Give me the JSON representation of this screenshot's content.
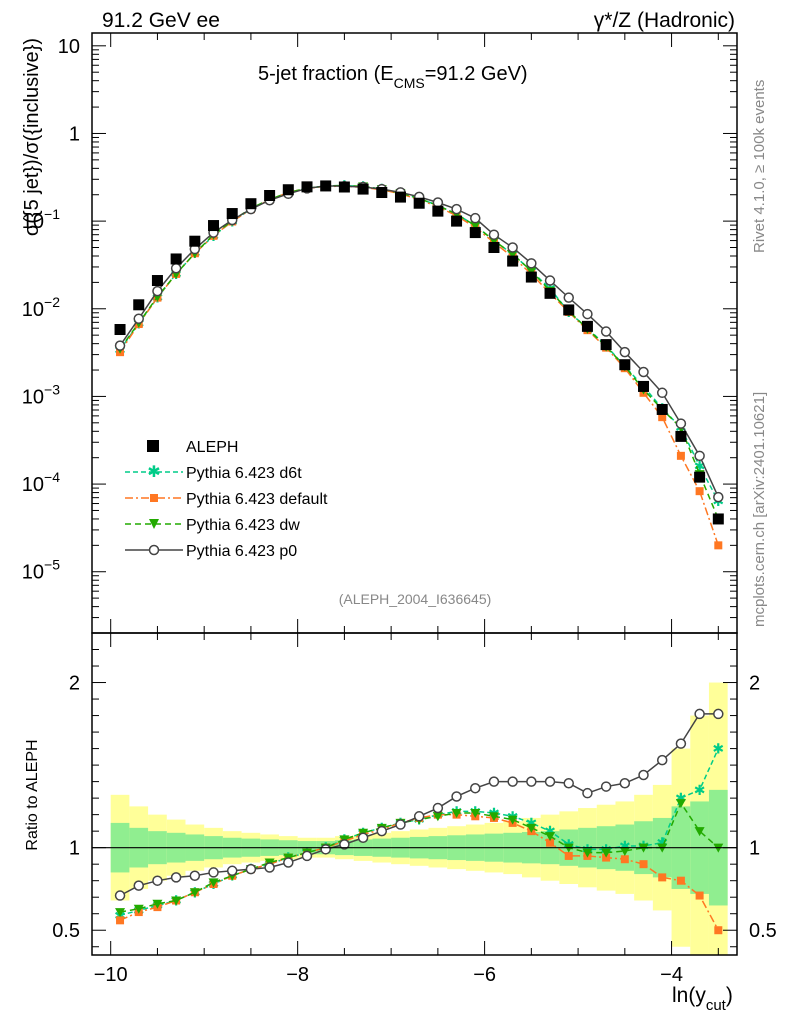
{
  "header": {
    "left": "91.2 GeV ee",
    "right": "γ*/Z (Hadronic)"
  },
  "side": {
    "rivet": "Rivet 4.1.0, ≥ 100k events",
    "mcplots": "mcplots.cern.ch [arXiv:2401.10621]"
  },
  "chart_data": {
    "type": "scatter",
    "title_main": "5-jet fraction (E",
    "title_sub": "CMS",
    "title_rest": "=91.2 GeV)",
    "ylabel": "σ({5 jet})/σ({inclusive})",
    "ratio_ylabel": "Ratio to ALEPH",
    "xlabel_main": "ln(y",
    "xlabel_sub": "cut",
    "xlabel_end": ")",
    "analysis": "(ALEPH_2004_I636645)",
    "xlim": [
      -10.2,
      -3.3
    ],
    "ylim": [
      2e-06,
      14
    ],
    "ratio_ylim": [
      0.35,
      2.3
    ],
    "x_ticks": [
      {
        "v": -10,
        "label": "−10"
      },
      {
        "v": -8,
        "label": "−8"
      },
      {
        "v": -6,
        "label": "−6"
      },
      {
        "v": -4,
        "label": "−4"
      }
    ],
    "y_ticks": [
      {
        "v": 10,
        "base": "10",
        "exp": ""
      },
      {
        "v": 1,
        "base": "1",
        "exp": ""
      },
      {
        "v": 0.1,
        "base": "10",
        "exp": "−1"
      },
      {
        "v": 0.01,
        "base": "10",
        "exp": "−2"
      },
      {
        "v": 0.001,
        "base": "10",
        "exp": "−3"
      },
      {
        "v": 0.0001,
        "base": "10",
        "exp": "−4"
      },
      {
        "v": 1e-05,
        "base": "10",
        "exp": "−5"
      }
    ],
    "ratio_ticks": [
      {
        "v": 0.5,
        "label": "0.5"
      },
      {
        "v": 1,
        "label": "1"
      },
      {
        "v": 2,
        "label": "2"
      }
    ],
    "x": [
      -9.9,
      -9.7,
      -9.5,
      -9.3,
      -9.1,
      -8.9,
      -8.7,
      -8.5,
      -8.3,
      -8.1,
      -7.9,
      -7.7,
      -7.5,
      -7.3,
      -7.1,
      -6.9,
      -6.7,
      -6.5,
      -6.3,
      -6.1,
      -5.9,
      -5.7,
      -5.5,
      -5.3,
      -5.1,
      -4.9,
      -4.7,
      -4.5,
      -4.3,
      -4.1,
      -3.9,
      -3.7,
      -3.5
    ],
    "series": [
      {
        "name": "ALEPH",
        "color": "#000000",
        "marker": "square",
        "values": [
          0.0058,
          0.0111,
          0.021,
          0.037,
          0.059,
          0.089,
          0.122,
          0.158,
          0.196,
          0.228,
          0.246,
          0.252,
          0.245,
          0.232,
          0.212,
          0.188,
          0.16,
          0.13,
          0.1,
          0.074,
          0.05,
          0.035,
          0.023,
          0.015,
          0.0097,
          0.0063,
          0.0039,
          0.0023,
          0.0013,
          0.00071,
          0.00035,
          0.00012,
          4e-05
        ]
      },
      {
        "name": "Pythia 6.423 d6t",
        "color": "#00CC88",
        "marker": "star",
        "dash": "5,3",
        "values": [
          0.0034,
          0.0068,
          0.0134,
          0.025,
          0.043,
          0.068,
          0.099,
          0.137,
          0.175,
          0.212,
          0.237,
          0.252,
          0.255,
          0.249,
          0.232,
          0.209,
          0.181,
          0.151,
          0.12,
          0.089,
          0.06,
          0.042,
          0.027,
          0.017,
          0.0092,
          0.006,
          0.0038,
          0.0022,
          0.0013,
          0.00073,
          0.00044,
          0.00016,
          6.4e-05
        ]
      },
      {
        "name": "Pythia 6.423 default",
        "color": "#FF7722",
        "marker": "square",
        "dash": "8,3,2,3",
        "values": [
          0.0032,
          0.0067,
          0.0134,
          0.025,
          0.043,
          0.068,
          0.099,
          0.137,
          0.175,
          0.212,
          0.237,
          0.249,
          0.25,
          0.243,
          0.228,
          0.205,
          0.176,
          0.146,
          0.115,
          0.085,
          0.057,
          0.039,
          0.025,
          0.015,
          0.0092,
          0.0057,
          0.0036,
          0.0021,
          0.0011,
          0.00058,
          0.00021,
          8.3e-05,
          2e-05
        ]
      },
      {
        "name": "Pythia 6.423 dw",
        "color": "#22AA00",
        "marker": "triangle-down",
        "dash": "6,4",
        "values": [
          0.0035,
          0.0069,
          0.0137,
          0.025,
          0.043,
          0.07,
          0.101,
          0.14,
          0.177,
          0.212,
          0.237,
          0.252,
          0.255,
          0.249,
          0.232,
          0.209,
          0.181,
          0.151,
          0.12,
          0.089,
          0.06,
          0.042,
          0.027,
          0.016,
          0.0094,
          0.0059,
          0.0037,
          0.0022,
          0.0012,
          0.00071,
          0.00044,
          0.00013,
          4e-05
        ]
      },
      {
        "name": "Pythia 6.423 p0",
        "color": "#444444",
        "marker": "circle-open",
        "dash": "",
        "values": [
          0.0038,
          0.0077,
          0.0159,
          0.029,
          0.048,
          0.074,
          0.103,
          0.137,
          0.173,
          0.205,
          0.236,
          0.252,
          0.25,
          0.245,
          0.232,
          0.213,
          0.189,
          0.163,
          0.137,
          0.108,
          0.07,
          0.05,
          0.033,
          0.021,
          0.0134,
          0.0087,
          0.0055,
          0.0032,
          0.0019,
          0.0011,
          0.00049,
          0.00021,
          7.1e-05
        ]
      }
    ],
    "ratio_series": [
      {
        "name": "Pythia 6.423 d6t",
        "values": [
          0.59,
          0.62,
          0.65,
          0.68,
          0.73,
          0.78,
          0.83,
          0.87,
          0.9,
          0.94,
          0.97,
          1.0,
          1.05,
          1.09,
          1.12,
          1.15,
          1.17,
          1.2,
          1.22,
          1.22,
          1.21,
          1.19,
          1.15,
          1.1,
          1.02,
          0.99,
          0.99,
          1.01,
          1.01,
          1.03,
          1.3,
          1.35,
          1.6
        ]
      },
      {
        "name": "Pythia 6.423 default",
        "values": [
          0.56,
          0.61,
          0.64,
          0.68,
          0.73,
          0.78,
          0.83,
          0.87,
          0.9,
          0.94,
          0.97,
          1.0,
          1.04,
          1.08,
          1.11,
          1.15,
          1.18,
          1.2,
          1.2,
          1.19,
          1.18,
          1.15,
          1.1,
          1.03,
          0.95,
          0.95,
          0.94,
          0.93,
          0.9,
          0.82,
          0.8,
          0.71,
          0.5
        ]
      },
      {
        "name": "Pythia 6.423 dw",
        "values": [
          0.61,
          0.63,
          0.66,
          0.68,
          0.73,
          0.79,
          0.83,
          0.87,
          0.91,
          0.94,
          0.97,
          1.0,
          1.05,
          1.09,
          1.12,
          1.15,
          1.17,
          1.19,
          1.21,
          1.21,
          1.19,
          1.17,
          1.12,
          1.07,
          1.0,
          0.97,
          0.97,
          0.98,
          1.0,
          1.0,
          1.27,
          1.1,
          1.0
        ]
      },
      {
        "name": "Pythia 6.423 p0",
        "values": [
          0.71,
          0.77,
          0.8,
          0.82,
          0.83,
          0.85,
          0.86,
          0.87,
          0.88,
          0.91,
          0.95,
          0.99,
          1.02,
          1.06,
          1.1,
          1.14,
          1.19,
          1.24,
          1.31,
          1.36,
          1.4,
          1.4,
          1.4,
          1.4,
          1.39,
          1.33,
          1.37,
          1.39,
          1.44,
          1.53,
          1.63,
          1.81,
          1.81
        ]
      }
    ],
    "band_inner": [
      0.15,
      0.12,
      0.1,
      0.09,
      0.08,
      0.07,
      0.06,
      0.055,
      0.05,
      0.045,
      0.04,
      0.04,
      0.045,
      0.05,
      0.055,
      0.06,
      0.065,
      0.07,
      0.075,
      0.08,
      0.085,
      0.09,
      0.095,
      0.1,
      0.11,
      0.12,
      0.13,
      0.14,
      0.16,
      0.18,
      0.25,
      0.28,
      0.35
    ],
    "band_outer": [
      0.32,
      0.25,
      0.2,
      0.17,
      0.14,
      0.12,
      0.1,
      0.09,
      0.08,
      0.07,
      0.06,
      0.06,
      0.07,
      0.08,
      0.09,
      0.1,
      0.11,
      0.12,
      0.13,
      0.14,
      0.15,
      0.16,
      0.18,
      0.2,
      0.22,
      0.24,
      0.26,
      0.28,
      0.32,
      0.38,
      0.6,
      0.8,
      1.0
    ],
    "band_colors": {
      "inner": "#90EE90",
      "outer": "#FFFF99"
    }
  }
}
